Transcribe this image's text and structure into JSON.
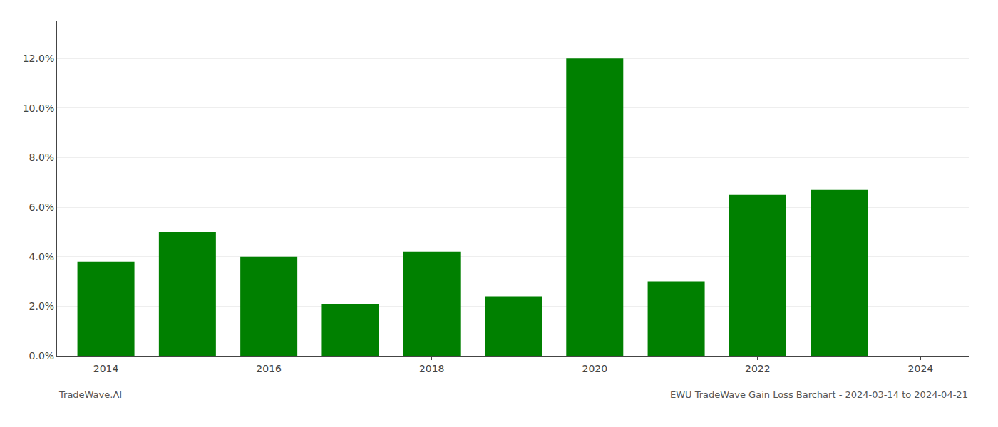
{
  "chart_data": {
    "type": "bar",
    "x": [
      2014,
      2015,
      2016,
      2017,
      2018,
      2019,
      2020,
      2021,
      2022,
      2023
    ],
    "values": [
      0.038,
      0.05,
      0.04,
      0.021,
      0.042,
      0.024,
      0.12,
      0.03,
      0.065,
      0.067
    ],
    "color": "#008000",
    "xlim": [
      2013.4,
      2024.6
    ],
    "xticks": [
      2014,
      2016,
      2018,
      2020,
      2022,
      2024
    ],
    "ylim": [
      0,
      0.135
    ],
    "yticks": [
      {
        "value": 0.0,
        "label": "0.0%"
      },
      {
        "value": 0.02,
        "label": "2.0%"
      },
      {
        "value": 0.04,
        "label": "4.0%"
      },
      {
        "value": 0.06,
        "label": "6.0%"
      },
      {
        "value": 0.08,
        "label": "8.0%"
      },
      {
        "value": 0.1,
        "label": "10.0%"
      },
      {
        "value": 0.12,
        "label": "12.0%"
      }
    ],
    "grid": true,
    "annotations": [
      "TradeWave.AI",
      "EWU TradeWave Gain Loss Barchart - 2024-03-14 to 2024-04-21"
    ]
  }
}
